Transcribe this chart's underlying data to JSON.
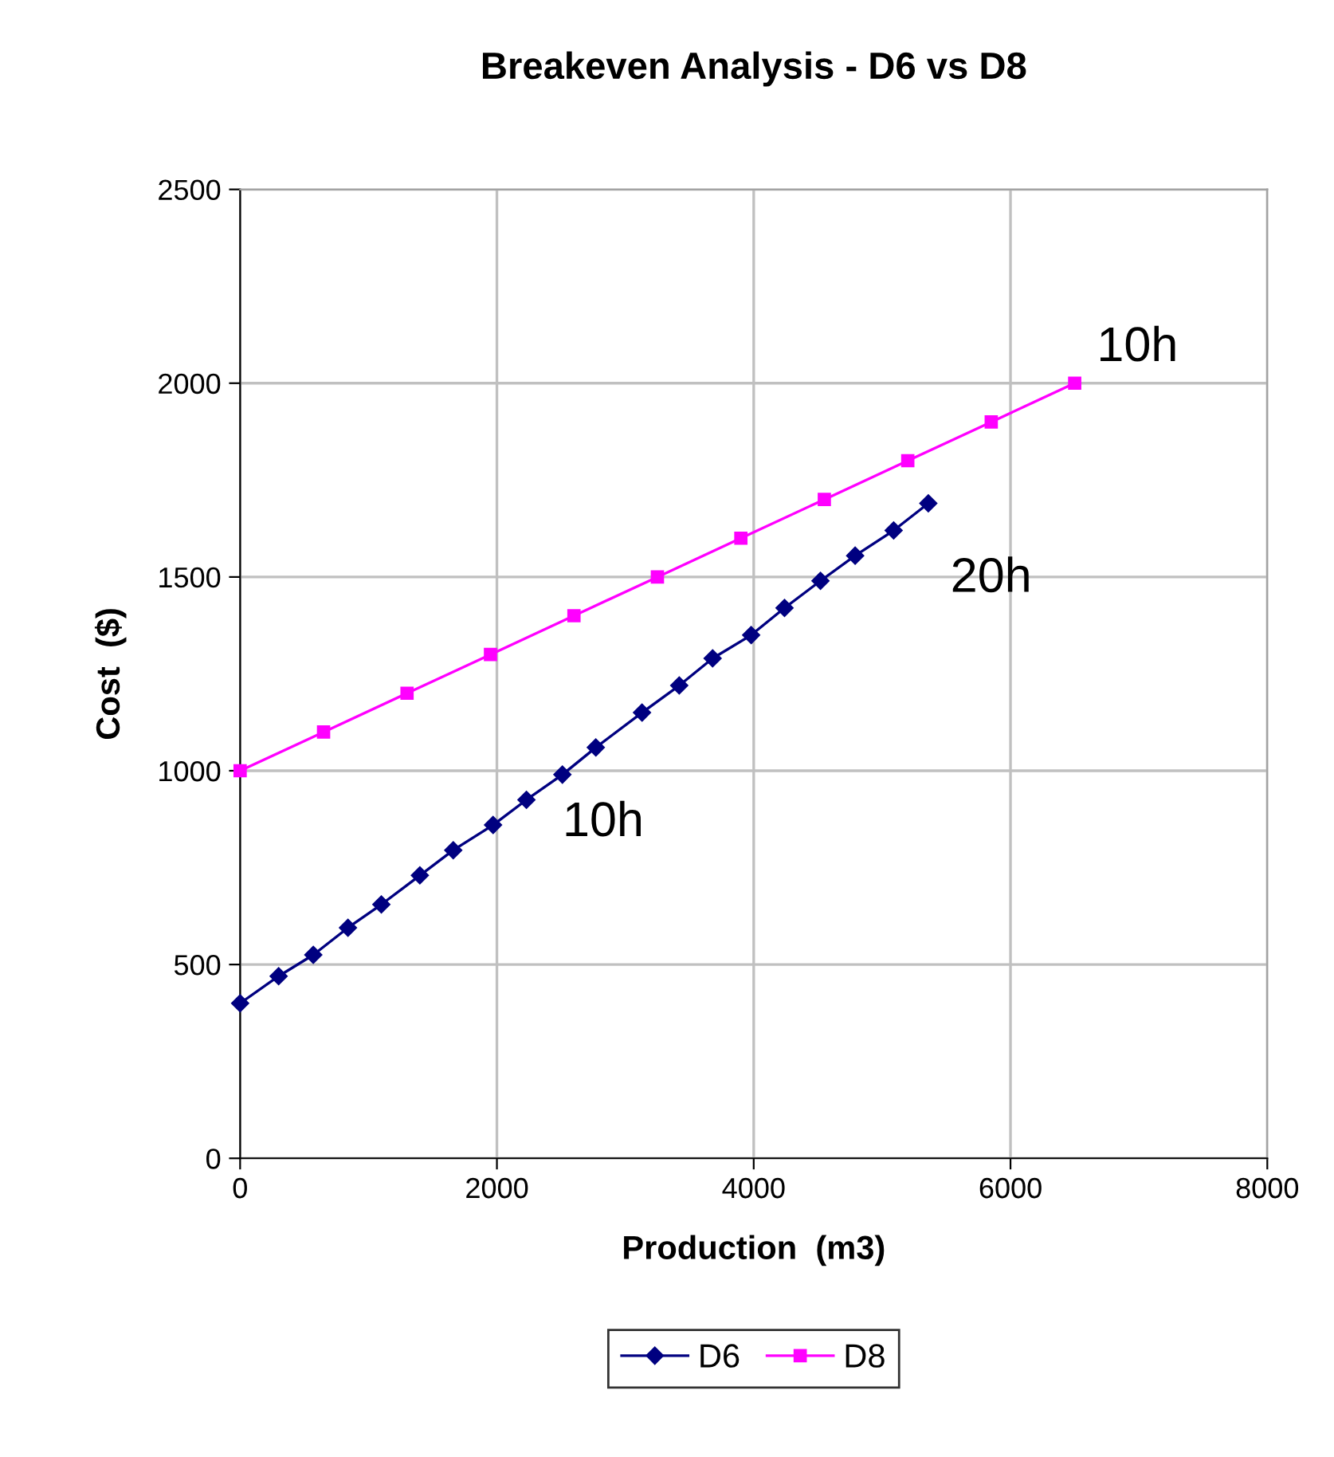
{
  "chart_data": {
    "type": "line",
    "title": "Breakeven Analysis - D6 vs D8",
    "xlabel": "Production  (m3)",
    "ylabel": "Cost  ($)",
    "xlim": [
      0,
      8000
    ],
    "xticks": [
      0,
      2000,
      4000,
      6000,
      8000
    ],
    "ylim": [
      0,
      2500
    ],
    "yticks": [
      0,
      500,
      1000,
      1500,
      2000,
      2500
    ],
    "grid": true,
    "legend": "bottom",
    "series": [
      {
        "name": "D6",
        "color": "#000080",
        "marker": "diamond",
        "x": [
          0,
          300,
          570,
          840,
          1100,
          1400,
          1660,
          1970,
          2230,
          2510,
          2770,
          3130,
          3420,
          3680,
          3980,
          4240,
          4520,
          4790,
          5090,
          5360
        ],
        "values": [
          400,
          470,
          525,
          595,
          655,
          730,
          795,
          860,
          925,
          990,
          1060,
          1150,
          1220,
          1290,
          1350,
          1420,
          1490,
          1555,
          1620,
          1690
        ]
      },
      {
        "name": "D8",
        "color": "#ff00ff",
        "marker": "square",
        "x": [
          0,
          650,
          1300,
          1950,
          2600,
          3250,
          3900,
          4550,
          5200,
          5850,
          6500
        ],
        "values": [
          1000,
          1100,
          1200,
          1300,
          1400,
          1500,
          1600,
          1700,
          1800,
          1900,
          2000
        ]
      }
    ],
    "annotations": [
      {
        "text": "10h",
        "x": 6500,
        "y": 2000
      },
      {
        "text": "20h",
        "x": 5360,
        "y": 1690
      },
      {
        "text": "10h",
        "x": 2770,
        "y": 1060
      }
    ]
  }
}
